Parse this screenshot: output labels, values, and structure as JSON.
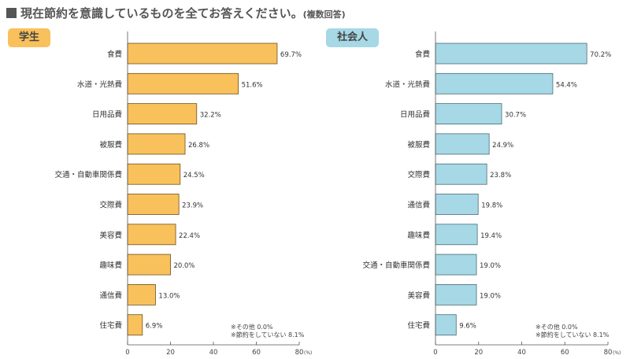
{
  "title": "現在節約を意識しているものを全てお答えください。",
  "title_note": "(複数回答)",
  "chart_data": [
    {
      "type": "bar",
      "orientation": "horizontal",
      "group_label": "学生",
      "color": "#F9C15C",
      "categories": [
        "食費",
        "水道・光熱費",
        "日用品費",
        "被服費",
        "交通・自動車関係費",
        "交際費",
        "美容費",
        "趣味費",
        "通信費",
        "住宅費"
      ],
      "values": [
        69.7,
        51.6,
        32.2,
        26.8,
        24.5,
        23.9,
        22.4,
        20.0,
        13.0,
        6.9
      ],
      "value_labels": [
        "69.7%",
        "51.6%",
        "32.2%",
        "26.8%",
        "24.5%",
        "23.9%",
        "22.4%",
        "20.0%",
        "13.0%",
        "6.9%"
      ],
      "xlim": [
        0,
        80
      ],
      "xticks": [
        "0",
        "20",
        "40",
        "60",
        "80"
      ],
      "xunit": "(%)",
      "notes": [
        "※その他 0.0%",
        "※節約をしていない 8.1%"
      ]
    },
    {
      "type": "bar",
      "orientation": "horizontal",
      "group_label": "社会人",
      "color": "#A6D8E5",
      "categories": [
        "食費",
        "水道・光熱費",
        "日用品費",
        "被服費",
        "交際費",
        "通信費",
        "趣味費",
        "交通・自動車関係費",
        "美容費",
        "住宅費"
      ],
      "values": [
        70.2,
        54.4,
        30.7,
        24.9,
        23.8,
        19.8,
        19.4,
        19.0,
        19.0,
        9.6
      ],
      "value_labels": [
        "70.2%",
        "54.4%",
        "30.7%",
        "24.9%",
        "23.8%",
        "19.8%",
        "19.4%",
        "19.0%",
        "19.0%",
        "9.6%"
      ],
      "xlim": [
        0,
        80
      ],
      "xticks": [
        "0",
        "20",
        "40",
        "60",
        "80"
      ],
      "xunit": "(%)",
      "notes": [
        "※その他 0.0%",
        "※節約をしていない 8.1%"
      ]
    }
  ]
}
